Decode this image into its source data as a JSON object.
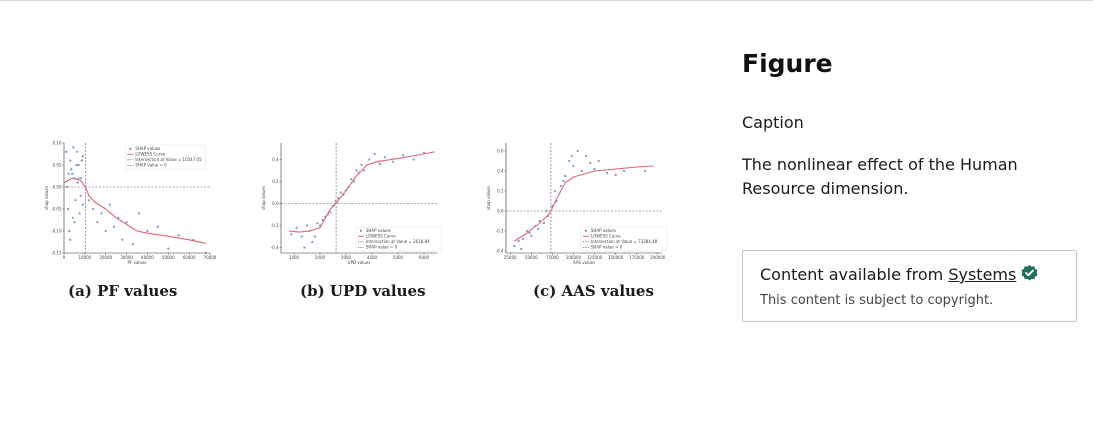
{
  "sidebar": {
    "heading": "Figure",
    "caption_label": "Caption",
    "caption_text": "The nonlinear effect of the Human Resource dimension.",
    "availability": {
      "prefix": "Content available from ",
      "source_link": "Systems",
      "copyright_note": "This content is subject to copyright."
    },
    "colors": {
      "verified_badge": "#1f6f5c"
    }
  },
  "figure": {
    "panels": [
      {
        "label": "(a) PF values",
        "xlabel": "PF values",
        "ylabel": "shap values",
        "legend": [
          "SHAP values",
          "LOWESS Curve",
          "Intersection at Value = 10247.05",
          "SHAP value = 0"
        ],
        "xticks": [
          "0",
          "10000",
          "20000",
          "30000",
          "40000",
          "50000",
          "60000",
          "70000"
        ],
        "yticks": [
          "0.10",
          "0.05",
          "0.00",
          "-0.05",
          "-0.10",
          "-0.15"
        ]
      },
      {
        "label": "(b) UPD values",
        "xlabel": "UPD values",
        "ylabel": "shap values",
        "legend": [
          "SHAP values",
          "LOWESS Curve",
          "Intersection at Value = 2618.84",
          "SHAP value = 0"
        ],
        "xticks": [
          "1000",
          "2000",
          "3000",
          "4000",
          "5000",
          "6000"
        ],
        "yticks": [
          "0.4",
          "0.2",
          "0.0",
          "-0.2",
          "-0.4"
        ]
      },
      {
        "label": "(c) AAS values",
        "xlabel": "AAS values",
        "ylabel": "shap values",
        "legend": [
          "SHAP values",
          "LOWESS Curve",
          "Intersection at Value = 73284.48",
          "SHAP value = 0"
        ],
        "xticks": [
          "25000",
          "50000",
          "75000",
          "100000",
          "125000",
          "150000",
          "175000",
          "200000"
        ],
        "yticks": [
          "0.6",
          "0.4",
          "0.2",
          "0.0",
          "-0.2",
          "-0.4"
        ]
      }
    ],
    "colors": {
      "points": "#4a78b5",
      "lowess": "#e8637a",
      "ref_line": "#555555"
    }
  },
  "chart_data": [
    {
      "type": "scatter",
      "title": "",
      "xlabel": "PF values",
      "ylabel": "shap values",
      "xlim": [
        0,
        70000
      ],
      "ylim": [
        -0.15,
        0.1
      ],
      "grid": false,
      "legend_position": "top-right",
      "intersection_x": 10247.05,
      "series": [
        {
          "name": "LOWESS Curve",
          "x": [
            0,
            4000,
            8000,
            10247,
            12000,
            15000,
            20000,
            25000,
            30000,
            35000,
            40000,
            50000,
            60000,
            68000
          ],
          "y": [
            0.01,
            0.02,
            0.015,
            0.0,
            -0.02,
            -0.035,
            -0.05,
            -0.07,
            -0.085,
            -0.1,
            -0.105,
            -0.112,
            -0.12,
            -0.128
          ]
        }
      ],
      "x": [
        1000,
        2000,
        3000,
        4000,
        5000,
        6000,
        7000,
        8000,
        9000,
        2500,
        3500,
        4500,
        5500,
        6500,
        7500,
        8500,
        1500,
        3000,
        5000,
        7000,
        9000,
        2200,
        4200,
        6200,
        8200,
        12000,
        14000,
        16000,
        18000,
        20000,
        22000,
        24000,
        26000,
        28000,
        30000,
        33000,
        36000,
        40000,
        45000,
        50000,
        55000,
        62000,
        68000
      ],
      "y": [
        0.08,
        -0.05,
        0.06,
        0.03,
        -0.08,
        0.05,
        0.02,
        -0.02,
        0.07,
        -0.1,
        0.04,
        0.09,
        -0.03,
        0.01,
        -0.06,
        0.06,
        0.0,
        -0.12,
        0.02,
        0.05,
        -0.04,
        0.03,
        -0.07,
        0.08,
        0.02,
        -0.03,
        -0.05,
        -0.08,
        -0.06,
        -0.1,
        -0.04,
        -0.09,
        -0.07,
        -0.12,
        -0.08,
        -0.13,
        -0.06,
        -0.1,
        -0.09,
        -0.14,
        -0.11,
        -0.12,
        -0.15
      ]
    },
    {
      "type": "scatter",
      "title": "",
      "xlabel": "UPD values",
      "ylabel": "shap values",
      "xlim": [
        500,
        6500
      ],
      "ylim": [
        -0.45,
        0.55
      ],
      "grid": false,
      "legend_position": "bottom-right",
      "intersection_x": 2618.84,
      "series": [
        {
          "name": "LOWESS Curve",
          "x": [
            800,
            1200,
            1600,
            2000,
            2400,
            2618,
            3000,
            3400,
            3800,
            4200,
            5000,
            6000,
            6400
          ],
          "y": [
            -0.25,
            -0.26,
            -0.25,
            -0.22,
            -0.05,
            0.0,
            0.12,
            0.25,
            0.35,
            0.38,
            0.41,
            0.45,
            0.47
          ]
        }
      ],
      "x": [
        900,
        1100,
        1300,
        1500,
        1700,
        1900,
        2100,
        2300,
        2500,
        2700,
        2900,
        3100,
        3300,
        3500,
        3700,
        3900,
        4100,
        4300,
        4500,
        4800,
        5200,
        5600,
        6000,
        1400,
        1600,
        1800,
        2000,
        2200,
        2400,
        2600,
        2800,
        3000,
        3200,
        3400,
        3600
      ],
      "y": [
        -0.28,
        -0.22,
        -0.3,
        -0.2,
        -0.35,
        -0.18,
        -0.15,
        -0.1,
        -0.02,
        0.05,
        0.08,
        0.15,
        0.2,
        0.28,
        0.3,
        0.4,
        0.45,
        0.36,
        0.42,
        0.38,
        0.44,
        0.4,
        0.46,
        -0.4,
        -0.25,
        -0.3,
        -0.2,
        -0.12,
        -0.08,
        0.02,
        0.1,
        0.12,
        0.22,
        0.3,
        0.35
      ]
    },
    {
      "type": "scatter",
      "title": "",
      "xlabel": "AAS values",
      "ylabel": "shap values",
      "xlim": [
        20000,
        205000
      ],
      "ylim": [
        -0.42,
        0.68
      ],
      "grid": false,
      "legend_position": "bottom-right",
      "intersection_x": 73284.48,
      "series": [
        {
          "name": "LOWESS Curve",
          "x": [
            30000,
            45000,
            60000,
            70000,
            73284,
            80000,
            90000,
            100000,
            125000,
            150000,
            175000,
            195000
          ],
          "y": [
            -0.3,
            -0.22,
            -0.12,
            -0.04,
            0.0,
            0.12,
            0.28,
            0.34,
            0.4,
            0.42,
            0.44,
            0.45
          ]
        }
      ],
      "x": [
        30000,
        35000,
        40000,
        45000,
        50000,
        55000,
        60000,
        65000,
        70000,
        75000,
        80000,
        85000,
        90000,
        95000,
        100000,
        105000,
        110000,
        115000,
        120000,
        125000,
        130000,
        140000,
        150000,
        160000,
        185000,
        38000,
        48000,
        58000,
        68000,
        78000,
        88000,
        98000
      ],
      "y": [
        -0.35,
        -0.3,
        -0.28,
        -0.2,
        -0.25,
        -0.15,
        -0.1,
        -0.12,
        -0.05,
        0.05,
        0.1,
        0.25,
        0.35,
        0.5,
        0.45,
        0.6,
        0.4,
        0.55,
        0.48,
        0.42,
        0.5,
        0.38,
        0.36,
        0.4,
        0.4,
        -0.38,
        -0.22,
        -0.18,
        0.0,
        0.2,
        0.3,
        0.55
      ]
    }
  ]
}
